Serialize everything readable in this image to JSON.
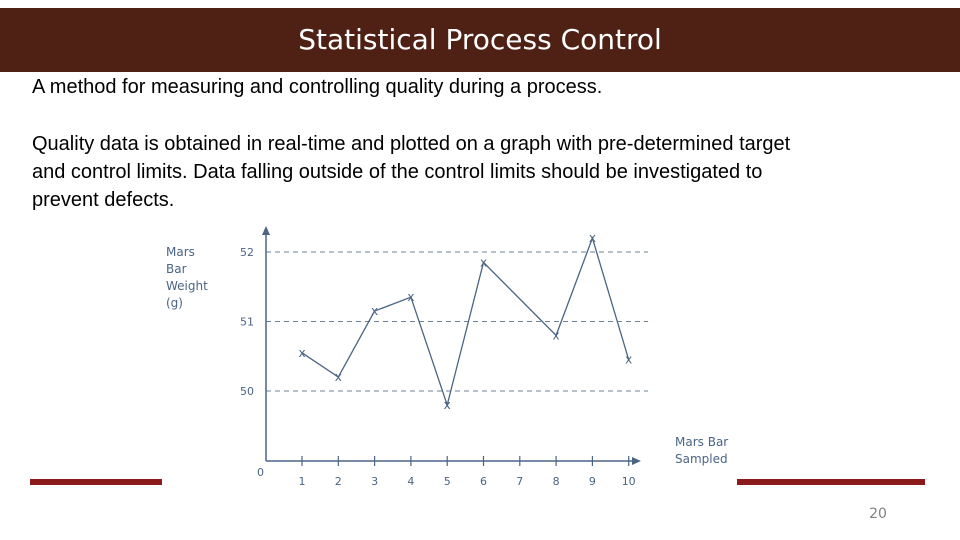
{
  "slide": {
    "title": "Statistical Process Control",
    "paragraph_1": "A method for measuring and controlling quality during a process.",
    "paragraph_2": "Quality data is obtained in real-time and plotted on a graph with pre-determined target and control limits. Data falling outside of the control limits should be investigated to prevent defects.",
    "slide_number": "20"
  },
  "colors": {
    "title_bar": "#4e2114",
    "accent_rule": "#8b1a1a",
    "chart_ink": "#4a6585",
    "slide_number": "#7f7f7f"
  },
  "chart_data": {
    "type": "line",
    "ylabel_lines": [
      "Mars",
      "Bar",
      "Weight",
      "(g)"
    ],
    "xlabel_lines": [
      "Mars Bar",
      "Sampled"
    ],
    "x": [
      1,
      2,
      3,
      4,
      5,
      6,
      7,
      8,
      9,
      10
    ],
    "x_tick_labels": [
      "1",
      "2",
      "3",
      "4",
      "5",
      "6",
      "7",
      "8",
      "9",
      "10"
    ],
    "y_tick_labels": [
      "52",
      "51",
      "50"
    ],
    "y_ticks": [
      52,
      51,
      50
    ],
    "origin_label": "0",
    "marker": "x",
    "grid": "dashed horizontal lines at 50, 51, 52",
    "points": [
      {
        "x": 1,
        "y": 50.55
      },
      {
        "x": 2,
        "y": 50.2
      },
      {
        "x": 3,
        "y": 51.15
      },
      {
        "x": 4,
        "y": 51.35
      },
      {
        "x": 5,
        "y": 49.8
      },
      {
        "x": 6,
        "y": 51.85
      },
      {
        "x": 8,
        "y": 50.8
      },
      {
        "x": 9,
        "y": 52.2
      },
      {
        "x": 10,
        "y": 50.45
      }
    ]
  }
}
